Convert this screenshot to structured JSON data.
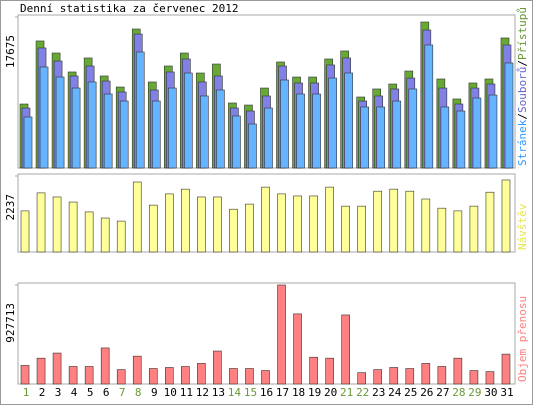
{
  "chart_data": {
    "type": "bar",
    "title": "Denní statistika za červenec 2012",
    "categories": [
      "1",
      "2",
      "3",
      "4",
      "5",
      "6",
      "7",
      "8",
      "9",
      "10",
      "11",
      "12",
      "13",
      "14",
      "15",
      "16",
      "17",
      "18",
      "19",
      "20",
      "21",
      "22",
      "23",
      "24",
      "25",
      "26",
      "27",
      "28",
      "29",
      "30",
      "31"
    ],
    "category_colors": [
      "#669933",
      "#000000",
      "#000000",
      "#000000",
      "#000000",
      "#000000",
      "#669933",
      "#669933",
      "#000000",
      "#000000",
      "#000000",
      "#000000",
      "#000000",
      "#669933",
      "#669933",
      "#000000",
      "#000000",
      "#000000",
      "#000000",
      "#000000",
      "#669933",
      "#669933",
      "#000000",
      "#000000",
      "#000000",
      "#000000",
      "#000000",
      "#669933",
      "#669933",
      "#000000",
      "#000000"
    ],
    "legend_separator": "/",
    "panels": [
      {
        "ylim": [
          0,
          17675
        ],
        "yticks": [
          17675
        ],
        "series": [
          {
            "name": "Stránek",
            "color": "#66b3ff",
            "text_color": "#3399ff",
            "values": [
              5970,
              11820,
              10650,
              9360,
              10070,
              8660,
              7840,
              13580,
              7840,
              9360,
              11120,
              8430,
              9130,
              6090,
              5150,
              7020,
              10300,
              8660,
              8660,
              10530,
              11120,
              7140,
              7140,
              7840,
              9250,
              14400,
              7140,
              6670,
              8190,
              8540,
              12290
            ]
          },
          {
            "name": "Souborů",
            "color": "#8080e6",
            "text_color": "#6666cc",
            "values": [
              7020,
              14050,
              12520,
              10770,
              11940,
              10180,
              8900,
              15680,
              9130,
              11240,
              12760,
              10070,
              10770,
              7020,
              6670,
              8430,
              11940,
              9950,
              9950,
              12060,
              12880,
              7840,
              8430,
              9250,
              10530,
              16150,
              9360,
              7490,
              9360,
              9830,
              14400
            ]
          },
          {
            "name": "Přístupů",
            "color": "#66aa33",
            "text_color": "#669933",
            "values": [
              7490,
              14870,
              13460,
              11240,
              12880,
              10770,
              9480,
              16270,
              10070,
              11940,
              13460,
              11120,
              12170,
              7610,
              7370,
              9360,
              12410,
              10650,
              10650,
              12760,
              13700,
              8310,
              9250,
              9830,
              11350,
              17090,
              10420,
              8080,
              9950,
              10420,
              15220
            ]
          }
        ]
      },
      {
        "ylim": [
          0,
          2237
        ],
        "yticks": [
          2237
        ],
        "series": [
          {
            "name": "Návštěv",
            "color": "#ffff99",
            "text_color": "#e6e64d",
            "values": [
              1210,
              1740,
              1620,
              1470,
              1180,
              1000,
              910,
              2060,
              1380,
              1710,
              1850,
              1620,
              1620,
              1260,
              1410,
              1910,
              1710,
              1650,
              1650,
              1910,
              1350,
              1350,
              1790,
              1850,
              1790,
              1560,
              1290,
              1210,
              1350,
              1760,
              2120
            ]
          }
        ]
      },
      {
        "ylim": [
          0,
          927713
        ],
        "yticks": [
          927713
        ],
        "series": [
          {
            "name": "Objem přenosu",
            "color": "#ff8080",
            "text_color": "#ff8080",
            "values": [
              174000,
              242000,
              290000,
              164000,
              164000,
              338000,
              135000,
              261000,
              145000,
              155000,
              164000,
              193000,
              309000,
              145000,
              145000,
              126000,
              927713,
              657000,
              251000,
              242000,
              647000,
              106000,
              135000,
              155000,
              145000,
              193000,
              164000,
              242000,
              126000,
              116000,
              280000
            ]
          }
        ]
      }
    ]
  }
}
